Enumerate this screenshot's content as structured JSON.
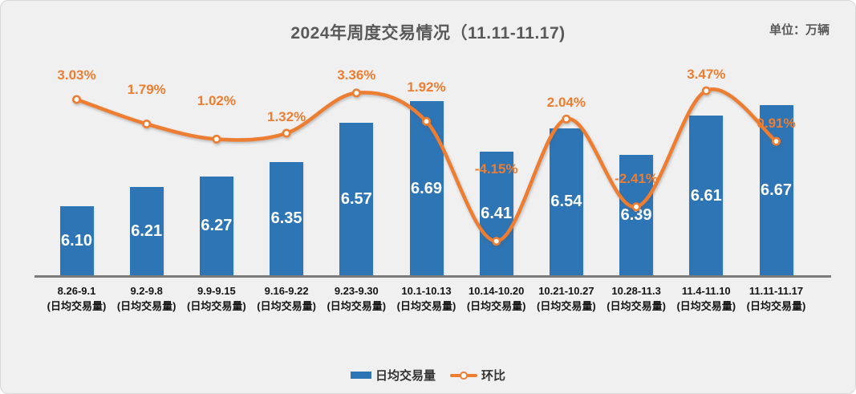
{
  "chart_data": {
    "type": "bar+line",
    "title": "2024年周度交易情况（11.11-11.17)",
    "unit_label": "单位：万辆",
    "categories": [
      "8.26-9.1",
      "9.2-9.8",
      "9.9-9.15",
      "9.16-9.22",
      "9.23-9.30",
      "10.1-10.13",
      "10.14-10.20",
      "10.21-10.27",
      "10.28-11.3",
      "11.4-11.10",
      "11.11-11.17"
    ],
    "category_sublabel": "(日均交易量)",
    "bar_series": {
      "name": "日均交易量",
      "color": "#2e75b6",
      "values": [
        6.1,
        6.21,
        6.27,
        6.35,
        6.57,
        6.69,
        6.41,
        6.54,
        6.39,
        6.61,
        6.67
      ],
      "value_labels": [
        "6.10",
        "6.21",
        "6.27",
        "6.35",
        "6.57",
        "6.69",
        "6.41",
        "6.54",
        "6.39",
        "6.61",
        "6.67"
      ]
    },
    "line_series": {
      "name": "环比",
      "color": "#ed7d31",
      "marker": "circle-white-fill",
      "values_pct": [
        3.03,
        1.79,
        1.02,
        1.32,
        3.36,
        1.92,
        -4.15,
        2.04,
        -2.41,
        3.47,
        0.91
      ],
      "value_labels": [
        "3.03%",
        "1.79%",
        "1.02%",
        "1.32%",
        "3.36%",
        "1.92%",
        "-4.15%",
        "2.04%",
        "-2.41%",
        "3.47%",
        "0.91%"
      ]
    },
    "primary_axis": {
      "min": 5.71,
      "labels_visible": false
    },
    "secondary_axis": {
      "unit": "%",
      "labels_visible": false
    },
    "grid": false,
    "legend_position": "bottom",
    "style": {
      "background": "#f0f0f1",
      "axis_line": "#7b7b7b",
      "title_color": "#595959",
      "bar_value_text": "#ffffff"
    }
  }
}
